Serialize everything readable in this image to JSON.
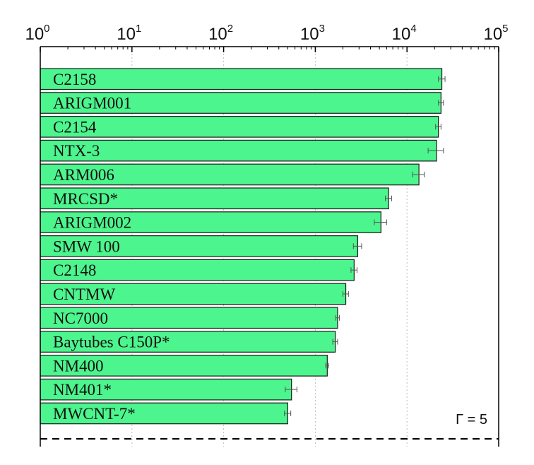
{
  "chart_data": {
    "type": "bar",
    "orientation": "horizontal",
    "x_scale": "log",
    "xlim": [
      1,
      100000
    ],
    "x_ticks": [
      {
        "base": "10",
        "exp": "0"
      },
      {
        "base": "10",
        "exp": "1"
      },
      {
        "base": "10",
        "exp": "2"
      },
      {
        "base": "10",
        "exp": "3"
      },
      {
        "base": "10",
        "exp": "4"
      },
      {
        "base": "10",
        "exp": "5"
      }
    ],
    "grid": "vertical dotted at major ticks",
    "bar_color": "#4cf58d",
    "categories": [
      "C2158",
      "ARIGM001",
      "C2154",
      "NTX-3",
      "ARM006",
      "MRCSD*",
      "ARIGM002",
      "SMW 100",
      "C2148",
      "CNTMW",
      "NC7000",
      "Baytubes C150P*",
      "NM400",
      "NM401*",
      "MWCNT-7*"
    ],
    "values": [
      24000,
      23500,
      22000,
      21000,
      13500,
      6300,
      5200,
      2900,
      2650,
      2150,
      1750,
      1650,
      1350,
      550,
      500
    ],
    "errors": [
      2000,
      1500,
      1500,
      4000,
      2000,
      500,
      800,
      300,
      200,
      150,
      80,
      100,
      50,
      80,
      40
    ],
    "annotation": "Γ = 5"
  }
}
